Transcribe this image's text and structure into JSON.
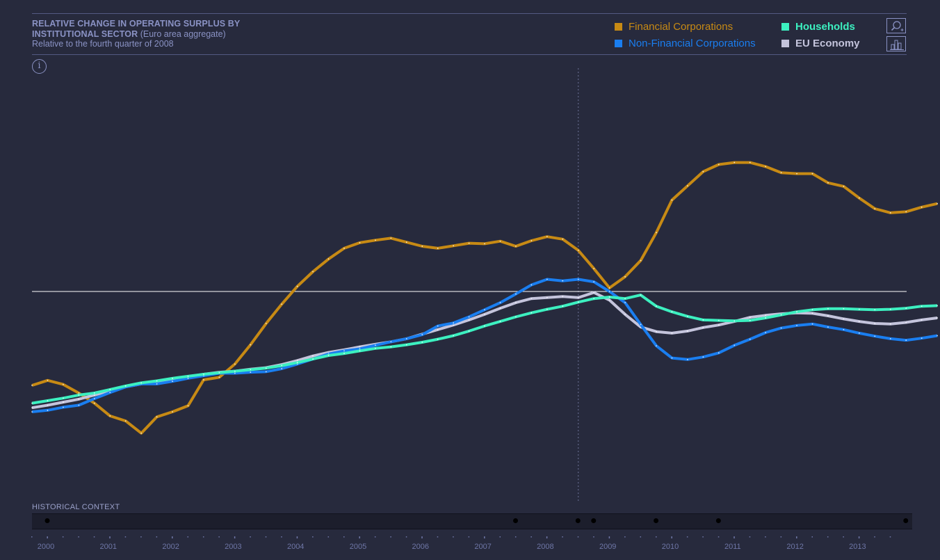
{
  "header": {
    "title_line1": "RELATIVE CHANGE IN OPERATING SURPLUS BY",
    "title_line2": "INSTITUTIONAL SECTOR",
    "title_line2_suffix": " (Euro area aggregate)",
    "subtitle": "Relative to the fourth quarter of 2008"
  },
  "legend": [
    {
      "label": "Financial Corporations",
      "color": "#c78a14"
    },
    {
      "label": "Households",
      "color": "#3cf0c0"
    },
    {
      "label": "Non-Financial Corporations",
      "color": "#1a7ef0"
    },
    {
      "label": "EU Economy",
      "color": "#c4c4dc"
    }
  ],
  "tools": {
    "search_icon": "magnifier-plus-icon",
    "bar_chart_icon": "bar-chart-icon"
  },
  "info_glyph": "i",
  "timeline": {
    "label": "HISTORICAL CONTEXT",
    "years": [
      "2000",
      "2001",
      "2002",
      "2003",
      "2004",
      "2005",
      "2006",
      "2007",
      "2008",
      "2009",
      "2010",
      "2011",
      "2012",
      "2013"
    ],
    "event_years": [
      2000.0,
      2007.5,
      2008.5,
      2008.75,
      2009.75,
      2010.75,
      2013.75
    ]
  },
  "chart_data": {
    "type": "line",
    "x_start": "2000-Q1",
    "x_end": "2013-Q4",
    "frequency": "quarterly",
    "reference_period": "2008-Q4",
    "ylim": [
      -0.35,
      0.39
    ],
    "grid": false,
    "legend_position": "top-right",
    "series": [
      {
        "name": "Financial Corporations",
        "color": "#c78a14",
        "values": [
          -0.185,
          -0.175,
          -0.183,
          -0.2,
          -0.22,
          -0.245,
          -0.255,
          -0.279,
          -0.247,
          -0.237,
          -0.225,
          -0.174,
          -0.169,
          -0.143,
          -0.105,
          -0.063,
          -0.025,
          0.01,
          0.039,
          0.064,
          0.085,
          0.096,
          0.101,
          0.105,
          0.097,
          0.089,
          0.085,
          0.09,
          0.095,
          0.094,
          0.099,
          0.089,
          0.1,
          0.108,
          0.103,
          0.081,
          0.045,
          0.007,
          0.029,
          0.061,
          0.116,
          0.18,
          0.208,
          0.236,
          0.25,
          0.254,
          0.254,
          0.246,
          0.234,
          0.232,
          0.232,
          0.214,
          0.207,
          0.184,
          0.163,
          0.155,
          0.157,
          0.166,
          0.173
        ]
      },
      {
        "name": "Households",
        "color": "#3cf0c0",
        "values": [
          -0.22,
          -0.215,
          -0.21,
          -0.204,
          -0.2,
          -0.193,
          -0.186,
          -0.18,
          -0.176,
          -0.171,
          -0.167,
          -0.163,
          -0.16,
          -0.157,
          -0.154,
          -0.151,
          -0.146,
          -0.14,
          -0.133,
          -0.126,
          -0.122,
          -0.117,
          -0.112,
          -0.109,
          -0.105,
          -0.1,
          -0.094,
          -0.087,
          -0.078,
          -0.068,
          -0.059,
          -0.05,
          -0.042,
          -0.035,
          -0.029,
          -0.021,
          -0.014,
          -0.011,
          -0.014,
          -0.007,
          -0.029,
          -0.04,
          -0.049,
          -0.056,
          -0.057,
          -0.058,
          -0.057,
          -0.052,
          -0.046,
          -0.04,
          -0.036,
          -0.034,
          -0.034,
          -0.035,
          -0.036,
          -0.035,
          -0.033,
          -0.029,
          -0.028
        ]
      },
      {
        "name": "Non-Financial Corporations",
        "color": "#1a7ef0",
        "values": [
          -0.237,
          -0.234,
          -0.228,
          -0.224,
          -0.211,
          -0.199,
          -0.188,
          -0.182,
          -0.182,
          -0.177,
          -0.171,
          -0.166,
          -0.161,
          -0.161,
          -0.159,
          -0.158,
          -0.152,
          -0.143,
          -0.133,
          -0.123,
          -0.117,
          -0.113,
          -0.106,
          -0.099,
          -0.093,
          -0.085,
          -0.068,
          -0.062,
          -0.05,
          -0.036,
          -0.022,
          -0.005,
          0.013,
          0.024,
          0.021,
          0.024,
          0.019,
          0.0,
          -0.022,
          -0.065,
          -0.107,
          -0.131,
          -0.134,
          -0.129,
          -0.121,
          -0.106,
          -0.094,
          -0.081,
          -0.072,
          -0.067,
          -0.064,
          -0.07,
          -0.075,
          -0.082,
          -0.088,
          -0.093,
          -0.096,
          -0.092,
          -0.087
        ]
      },
      {
        "name": "EU Economy",
        "color": "#c4c4dc",
        "values": [
          -0.229,
          -0.224,
          -0.218,
          -0.212,
          -0.204,
          -0.195,
          -0.188,
          -0.182,
          -0.178,
          -0.174,
          -0.168,
          -0.163,
          -0.159,
          -0.157,
          -0.153,
          -0.15,
          -0.144,
          -0.136,
          -0.127,
          -0.12,
          -0.115,
          -0.109,
          -0.104,
          -0.099,
          -0.093,
          -0.084,
          -0.075,
          -0.066,
          -0.056,
          -0.045,
          -0.033,
          -0.022,
          -0.014,
          -0.012,
          -0.01,
          -0.012,
          -0.002,
          -0.017,
          -0.045,
          -0.07,
          -0.079,
          -0.082,
          -0.078,
          -0.071,
          -0.066,
          -0.059,
          -0.051,
          -0.047,
          -0.044,
          -0.042,
          -0.043,
          -0.048,
          -0.054,
          -0.059,
          -0.063,
          -0.064,
          -0.061,
          -0.056,
          -0.052
        ]
      }
    ]
  }
}
